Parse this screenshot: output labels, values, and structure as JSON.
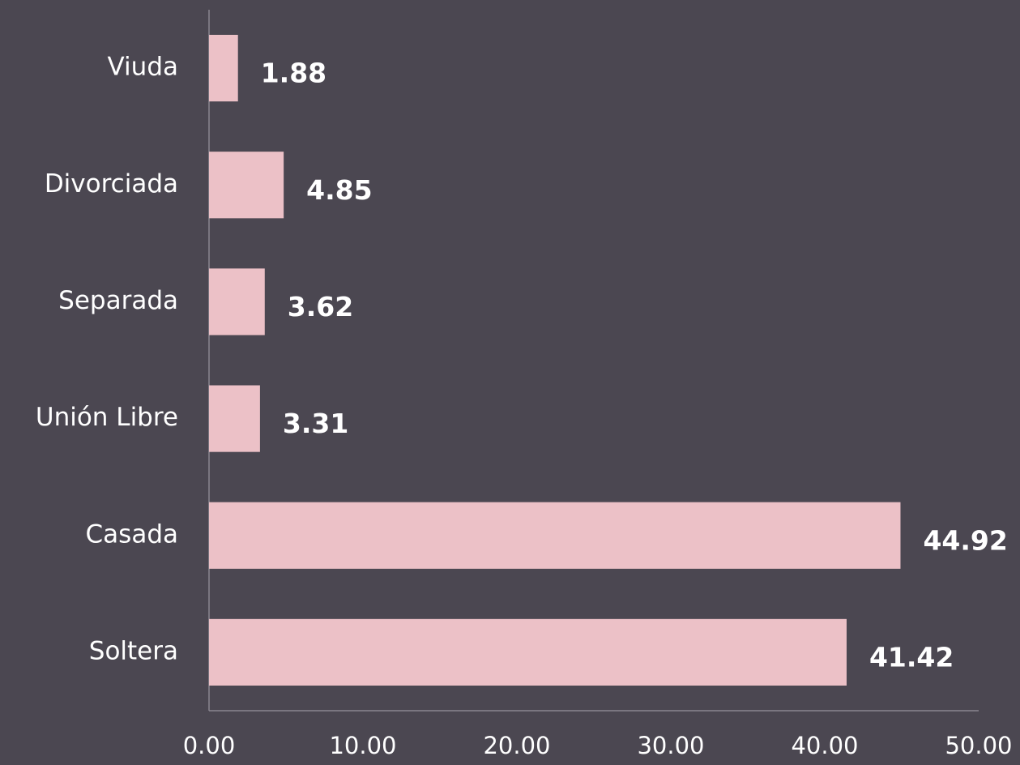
{
  "chart_data": {
    "type": "barh",
    "categories": [
      "Viuda",
      "Divorciada",
      "Separada",
      "Unión Libre",
      "Casada",
      "Soltera"
    ],
    "values": [
      1.88,
      4.85,
      3.62,
      3.31,
      44.92,
      41.42
    ],
    "color": "#ecc1c7",
    "xlim": [
      0,
      50
    ],
    "xticks": [
      {
        "value": 0,
        "label": "0.00"
      },
      {
        "value": 10,
        "label": "10.00"
      },
      {
        "value": 20,
        "label": "20.00"
      },
      {
        "value": 30,
        "label": "30.00"
      },
      {
        "value": 40,
        "label": "40.00"
      },
      {
        "value": 50,
        "label": "50.00"
      }
    ],
    "grid": false
  }
}
